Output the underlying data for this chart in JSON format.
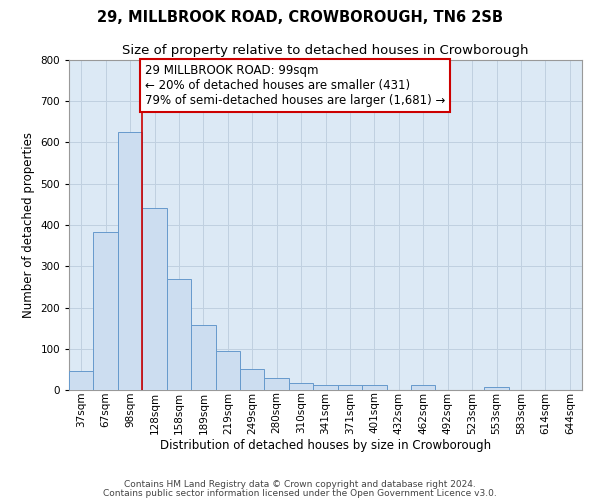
{
  "title_line1": "29, MILLBROOK ROAD, CROWBOROUGH, TN6 2SB",
  "title_line2": "Size of property relative to detached houses in Crowborough",
  "xlabel": "Distribution of detached houses by size in Crowborough",
  "ylabel": "Number of detached properties",
  "bar_labels": [
    "37sqm",
    "67sqm",
    "98sqm",
    "128sqm",
    "158sqm",
    "189sqm",
    "219sqm",
    "249sqm",
    "280sqm",
    "310sqm",
    "341sqm",
    "371sqm",
    "401sqm",
    "432sqm",
    "462sqm",
    "492sqm",
    "523sqm",
    "553sqm",
    "583sqm",
    "614sqm",
    "644sqm"
  ],
  "bar_values": [
    47,
    383,
    625,
    441,
    268,
    157,
    95,
    51,
    30,
    16,
    12,
    12,
    12,
    0,
    12,
    0,
    0,
    8,
    0,
    0,
    0
  ],
  "bar_color": "#ccddf0",
  "bar_edge_color": "#6699cc",
  "vline_color": "#cc0000",
  "annotation_line1": "29 MILLBROOK ROAD: 99sqm",
  "annotation_line2": "← 20% of detached houses are smaller (431)",
  "annotation_line3": "79% of semi-detached houses are larger (1,681) →",
  "annotation_box_color": "#ffffff",
  "annotation_box_edge": "#cc0000",
  "ylim": [
    0,
    800
  ],
  "yticks": [
    0,
    100,
    200,
    300,
    400,
    500,
    600,
    700,
    800
  ],
  "footer_line1": "Contains HM Land Registry data © Crown copyright and database right 2024.",
  "footer_line2": "Contains public sector information licensed under the Open Government Licence v3.0.",
  "bg_color": "#ffffff",
  "plot_bg_color": "#dce9f5",
  "grid_color": "#c0d0e0",
  "title_fontsize": 10.5,
  "subtitle_fontsize": 9.5,
  "annotation_fontsize": 8.5,
  "axis_label_fontsize": 8.5,
  "tick_fontsize": 7.5,
  "footer_fontsize": 6.5
}
